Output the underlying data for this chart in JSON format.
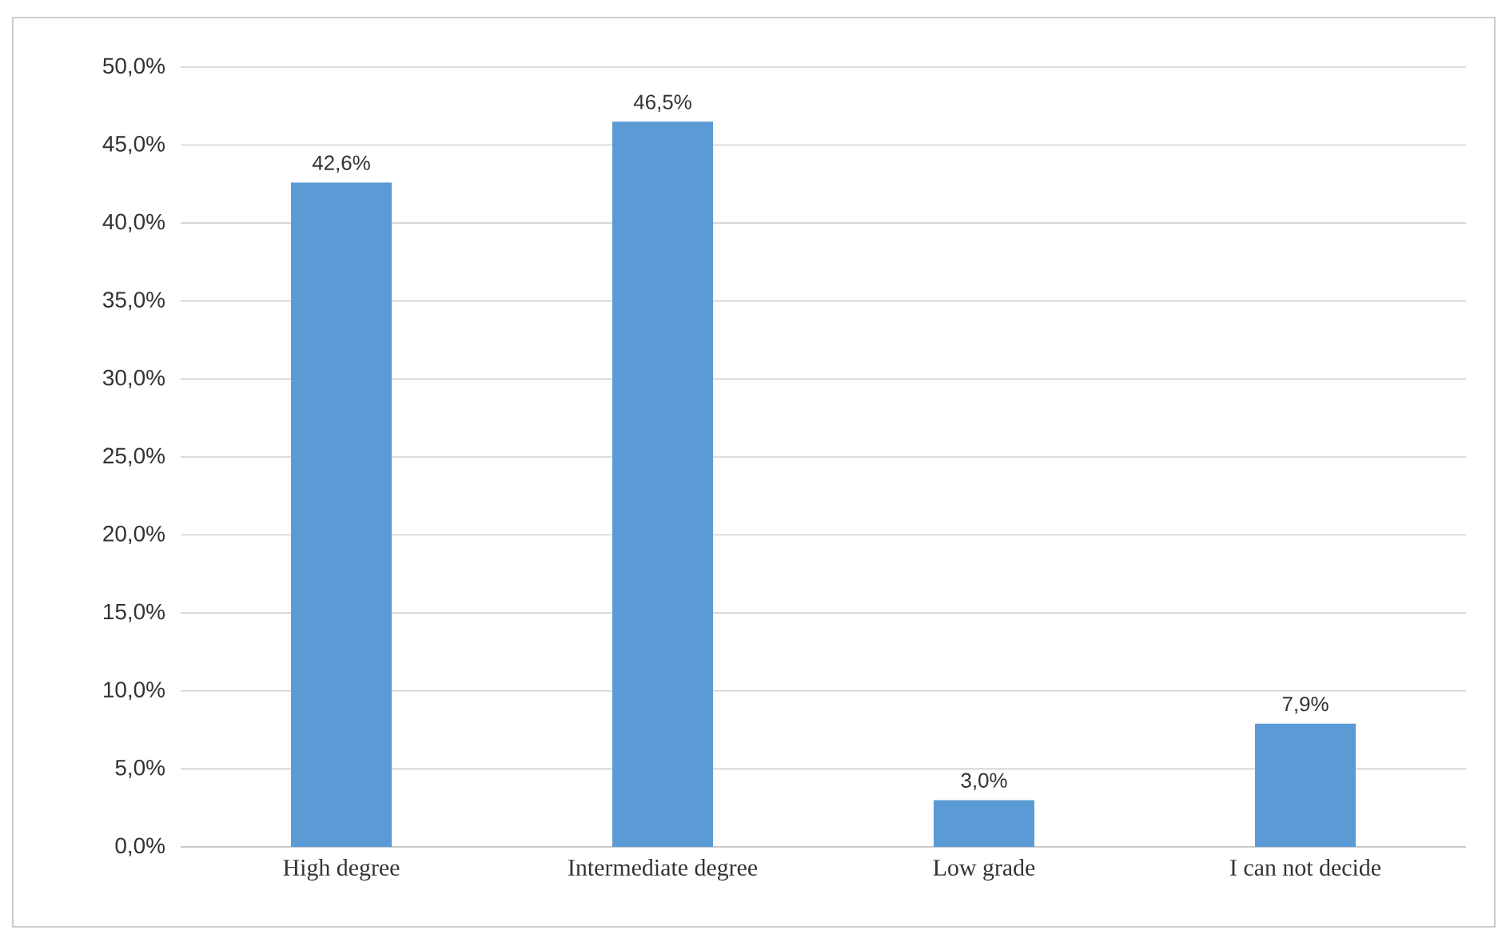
{
  "chart_data": {
    "type": "bar",
    "categories": [
      "High degree",
      "Intermediate degree",
      "Low grade",
      "I can not decide"
    ],
    "values": [
      42.6,
      46.5,
      3.0,
      7.9
    ],
    "value_labels": [
      "42,6%",
      "46,5%",
      "3,0%",
      "7,9%"
    ],
    "color": "#5b9bd5",
    "ylim": [
      0,
      50
    ],
    "yticks": [
      {
        "value": 0,
        "label": "0,0%"
      },
      {
        "value": 5,
        "label": "5,0%"
      },
      {
        "value": 10,
        "label": "10,0%"
      },
      {
        "value": 15,
        "label": "15,0%"
      },
      {
        "value": 20,
        "label": "20,0%"
      },
      {
        "value": 25,
        "label": "25,0%"
      },
      {
        "value": 30,
        "label": "30,0%"
      },
      {
        "value": 35,
        "label": "35,0%"
      },
      {
        "value": 40,
        "label": "40,0%"
      },
      {
        "value": 45,
        "label": "45,0%"
      },
      {
        "value": 50,
        "label": "50,0%"
      }
    ],
    "grid": "y"
  }
}
